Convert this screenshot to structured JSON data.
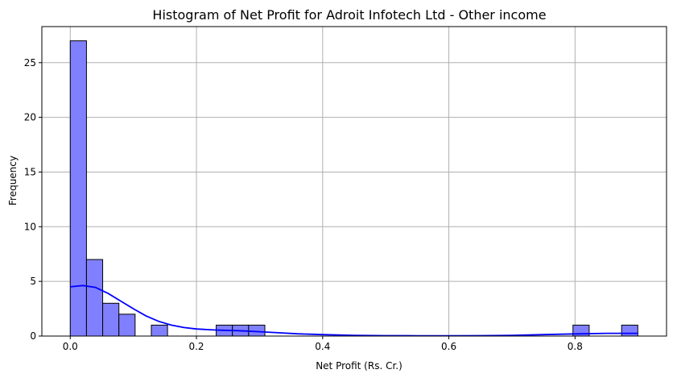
{
  "chart_data": {
    "type": "bar",
    "title": "Histogram of Net Profit for Adroit Infotech Ltd - Other income",
    "xlabel": "Net Profit (Rs. Cr.)",
    "ylabel": "Frequency",
    "xlim": [
      -0.045,
      0.945
    ],
    "ylim": [
      0,
      28.3
    ],
    "xticks": [
      0.0,
      0.2,
      0.4,
      0.6,
      0.8
    ],
    "xtick_labels": [
      "0.0",
      "0.2",
      "0.4",
      "0.6",
      "0.8"
    ],
    "yticks": [
      0,
      5,
      10,
      15,
      20,
      25
    ],
    "ytick_labels": [
      "0",
      "5",
      "10",
      "15",
      "20",
      "25"
    ],
    "grid": true,
    "bin_width": 0.0257,
    "bins": [
      {
        "x0": 0.0,
        "x1": 0.0257,
        "count": 27
      },
      {
        "x0": 0.0257,
        "x1": 0.0514,
        "count": 7
      },
      {
        "x0": 0.0514,
        "x1": 0.0771,
        "count": 3
      },
      {
        "x0": 0.0771,
        "x1": 0.1028,
        "count": 2
      },
      {
        "x0": 0.1285,
        "x1": 0.1542,
        "count": 1
      },
      {
        "x0": 0.2313,
        "x1": 0.257,
        "count": 1
      },
      {
        "x0": 0.257,
        "x1": 0.2827,
        "count": 1
      },
      {
        "x0": 0.2827,
        "x1": 0.3084,
        "count": 1
      },
      {
        "x0": 0.7967,
        "x1": 0.8224,
        "count": 1
      },
      {
        "x0": 0.8738,
        "x1": 0.8995,
        "count": 1
      }
    ],
    "kde": [
      [
        0.0,
        4.5
      ],
      [
        0.02,
        4.62
      ],
      [
        0.04,
        4.45
      ],
      [
        0.06,
        3.9
      ],
      [
        0.08,
        3.2
      ],
      [
        0.1,
        2.5
      ],
      [
        0.12,
        1.85
      ],
      [
        0.14,
        1.35
      ],
      [
        0.16,
        1.0
      ],
      [
        0.18,
        0.78
      ],
      [
        0.2,
        0.65
      ],
      [
        0.22,
        0.58
      ],
      [
        0.24,
        0.53
      ],
      [
        0.26,
        0.5
      ],
      [
        0.28,
        0.46
      ],
      [
        0.3,
        0.4
      ],
      [
        0.33,
        0.3
      ],
      [
        0.36,
        0.21
      ],
      [
        0.4,
        0.13
      ],
      [
        0.45,
        0.07
      ],
      [
        0.5,
        0.04
      ],
      [
        0.55,
        0.03
      ],
      [
        0.6,
        0.03
      ],
      [
        0.65,
        0.04
      ],
      [
        0.7,
        0.07
      ],
      [
        0.75,
        0.13
      ],
      [
        0.8,
        0.2
      ],
      [
        0.85,
        0.25
      ],
      [
        0.9,
        0.25
      ]
    ],
    "colors": {
      "bar_fill": "#8080ff",
      "bar_edge": "#000000",
      "kde_line": "#0000ff",
      "grid": "#b0b0b0"
    }
  }
}
